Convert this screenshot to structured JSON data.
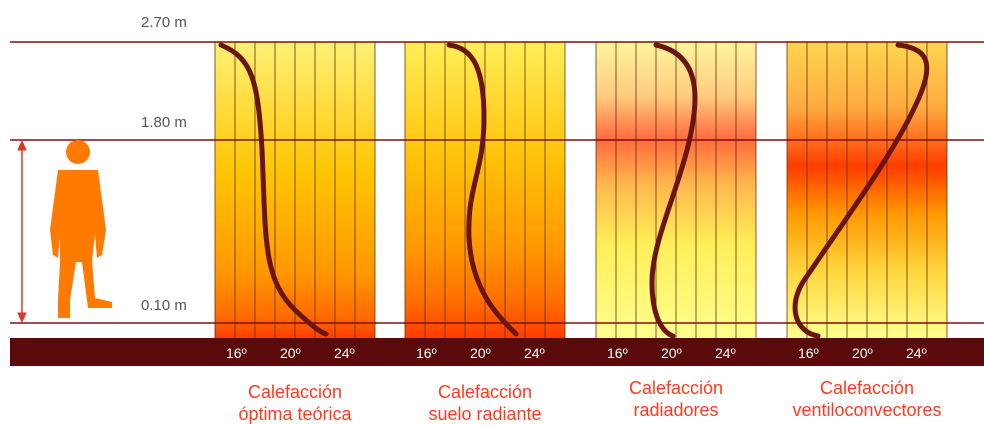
{
  "heights": [
    "2.70 m",
    "1.80 m",
    "0.10 m"
  ],
  "ticks": [
    "16º",
    "20º",
    "24º"
  ],
  "panels": [
    {
      "title1": "Calefacción",
      "title2": "óptima teórica"
    },
    {
      "title1": "Calefacción",
      "title2": "suelo radiante"
    },
    {
      "title1": "Calefacción",
      "title2": "radiadores"
    },
    {
      "title1": "Calefacción",
      "title2": "ventiloconvectores"
    }
  ],
  "colors": {
    "line": "#7a1010",
    "floor": "#5a0a0a",
    "curve": "#6a1414",
    "person": "#ff7a00",
    "arrow": "#d9382a",
    "title": "#ff3b1f",
    "grid": "#5a2a00"
  }
}
